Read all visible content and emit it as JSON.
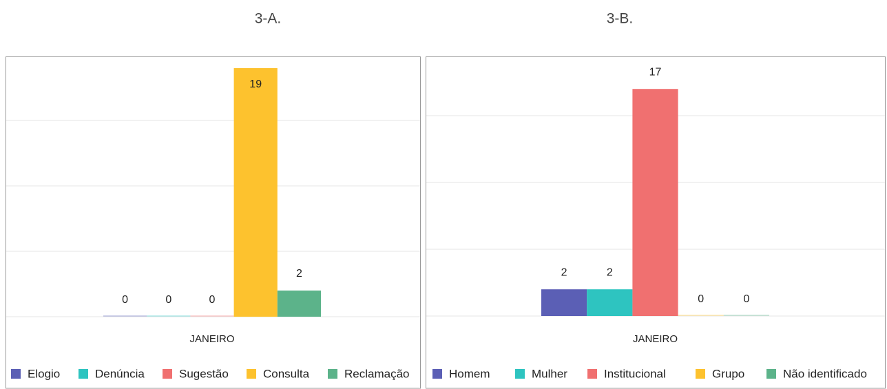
{
  "chart_data": [
    {
      "type": "bar",
      "title": "3-A.",
      "categories": [
        "JANEIRO"
      ],
      "series": [
        {
          "name": "Elogio",
          "color": "#5b5fb5",
          "values": [
            0
          ]
        },
        {
          "name": "Denúncia",
          "color": "#2ec4c0",
          "values": [
            0
          ]
        },
        {
          "name": "Sugestão",
          "color": "#f07070",
          "values": [
            0
          ]
        },
        {
          "name": "Consulta",
          "color": "#fdc22e",
          "values": [
            19
          ]
        },
        {
          "name": "Reclamação",
          "color": "#5cb38a",
          "values": [
            2
          ]
        }
      ],
      "ylim": [
        0,
        20
      ],
      "yticks": [
        0,
        5,
        10,
        15,
        20
      ],
      "grid": true,
      "legend": "bottom"
    },
    {
      "type": "bar",
      "title": "3-B.",
      "categories": [
        "JANEIRO"
      ],
      "series": [
        {
          "name": "Homem",
          "color": "#5b5fb5",
          "values": [
            2
          ]
        },
        {
          "name": "Mulher",
          "color": "#2ec4c0",
          "values": [
            2
          ]
        },
        {
          "name": "Institucional",
          "color": "#f07070",
          "values": [
            17
          ]
        },
        {
          "name": "Grupo",
          "color": "#fdc22e",
          "values": [
            0
          ]
        },
        {
          "name": "Não identificado",
          "color": "#5cb38a",
          "values": [
            0
          ]
        }
      ],
      "ylim": [
        0,
        20
      ],
      "yticks": [
        0,
        5,
        10,
        15,
        20
      ],
      "grid": true,
      "legend": "bottom"
    }
  ]
}
